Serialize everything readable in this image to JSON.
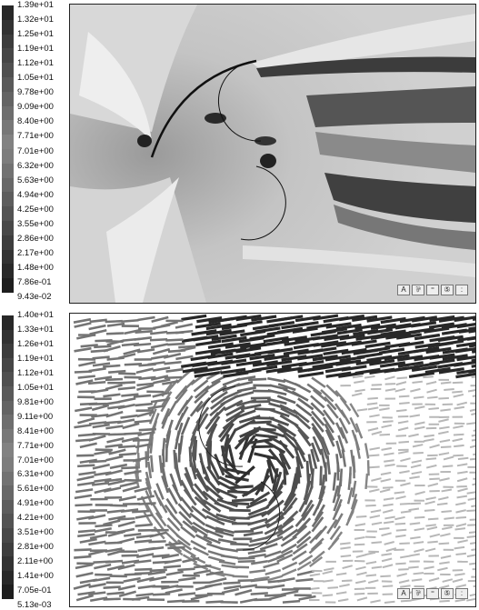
{
  "contour_panel": {
    "legend_labels": [
      "1.39e+01",
      "1.32e+01",
      "1.25e+01",
      "1.19e+01",
      "1.12e+01",
      "1.05e+01",
      "9.78e+00",
      "9.09e+00",
      "8.40e+00",
      "7.71e+00",
      "7.01e+00",
      "6.32e+00",
      "5.63e+00",
      "4.94e+00",
      "4.25e+00",
      "3.55e+00",
      "2.86e+00",
      "2.17e+00",
      "1.48e+00",
      "7.86e-01",
      "9.43e-02"
    ],
    "toolbar": [
      "A",
      "⅌",
      "⁼",
      "⑤",
      ":"
    ]
  },
  "vector_panel": {
    "legend_labels": [
      "1.40e+01",
      "1.33e+01",
      "1.26e+01",
      "1.19e+01",
      "1.12e+01",
      "1.05e+01",
      "9.81e+00",
      "9.11e+00",
      "8.41e+00",
      "7.71e+00",
      "7.01e+00",
      "6.31e+00",
      "5.61e+00",
      "4.91e+00",
      "4.21e+00",
      "3.51e+00",
      "2.81e+00",
      "2.11e+00",
      "1.41e+00",
      "7.05e-01",
      "5.13e-03"
    ],
    "toolbar": [
      "A",
      "⅌",
      "⁼",
      "⑤",
      ":"
    ]
  }
}
